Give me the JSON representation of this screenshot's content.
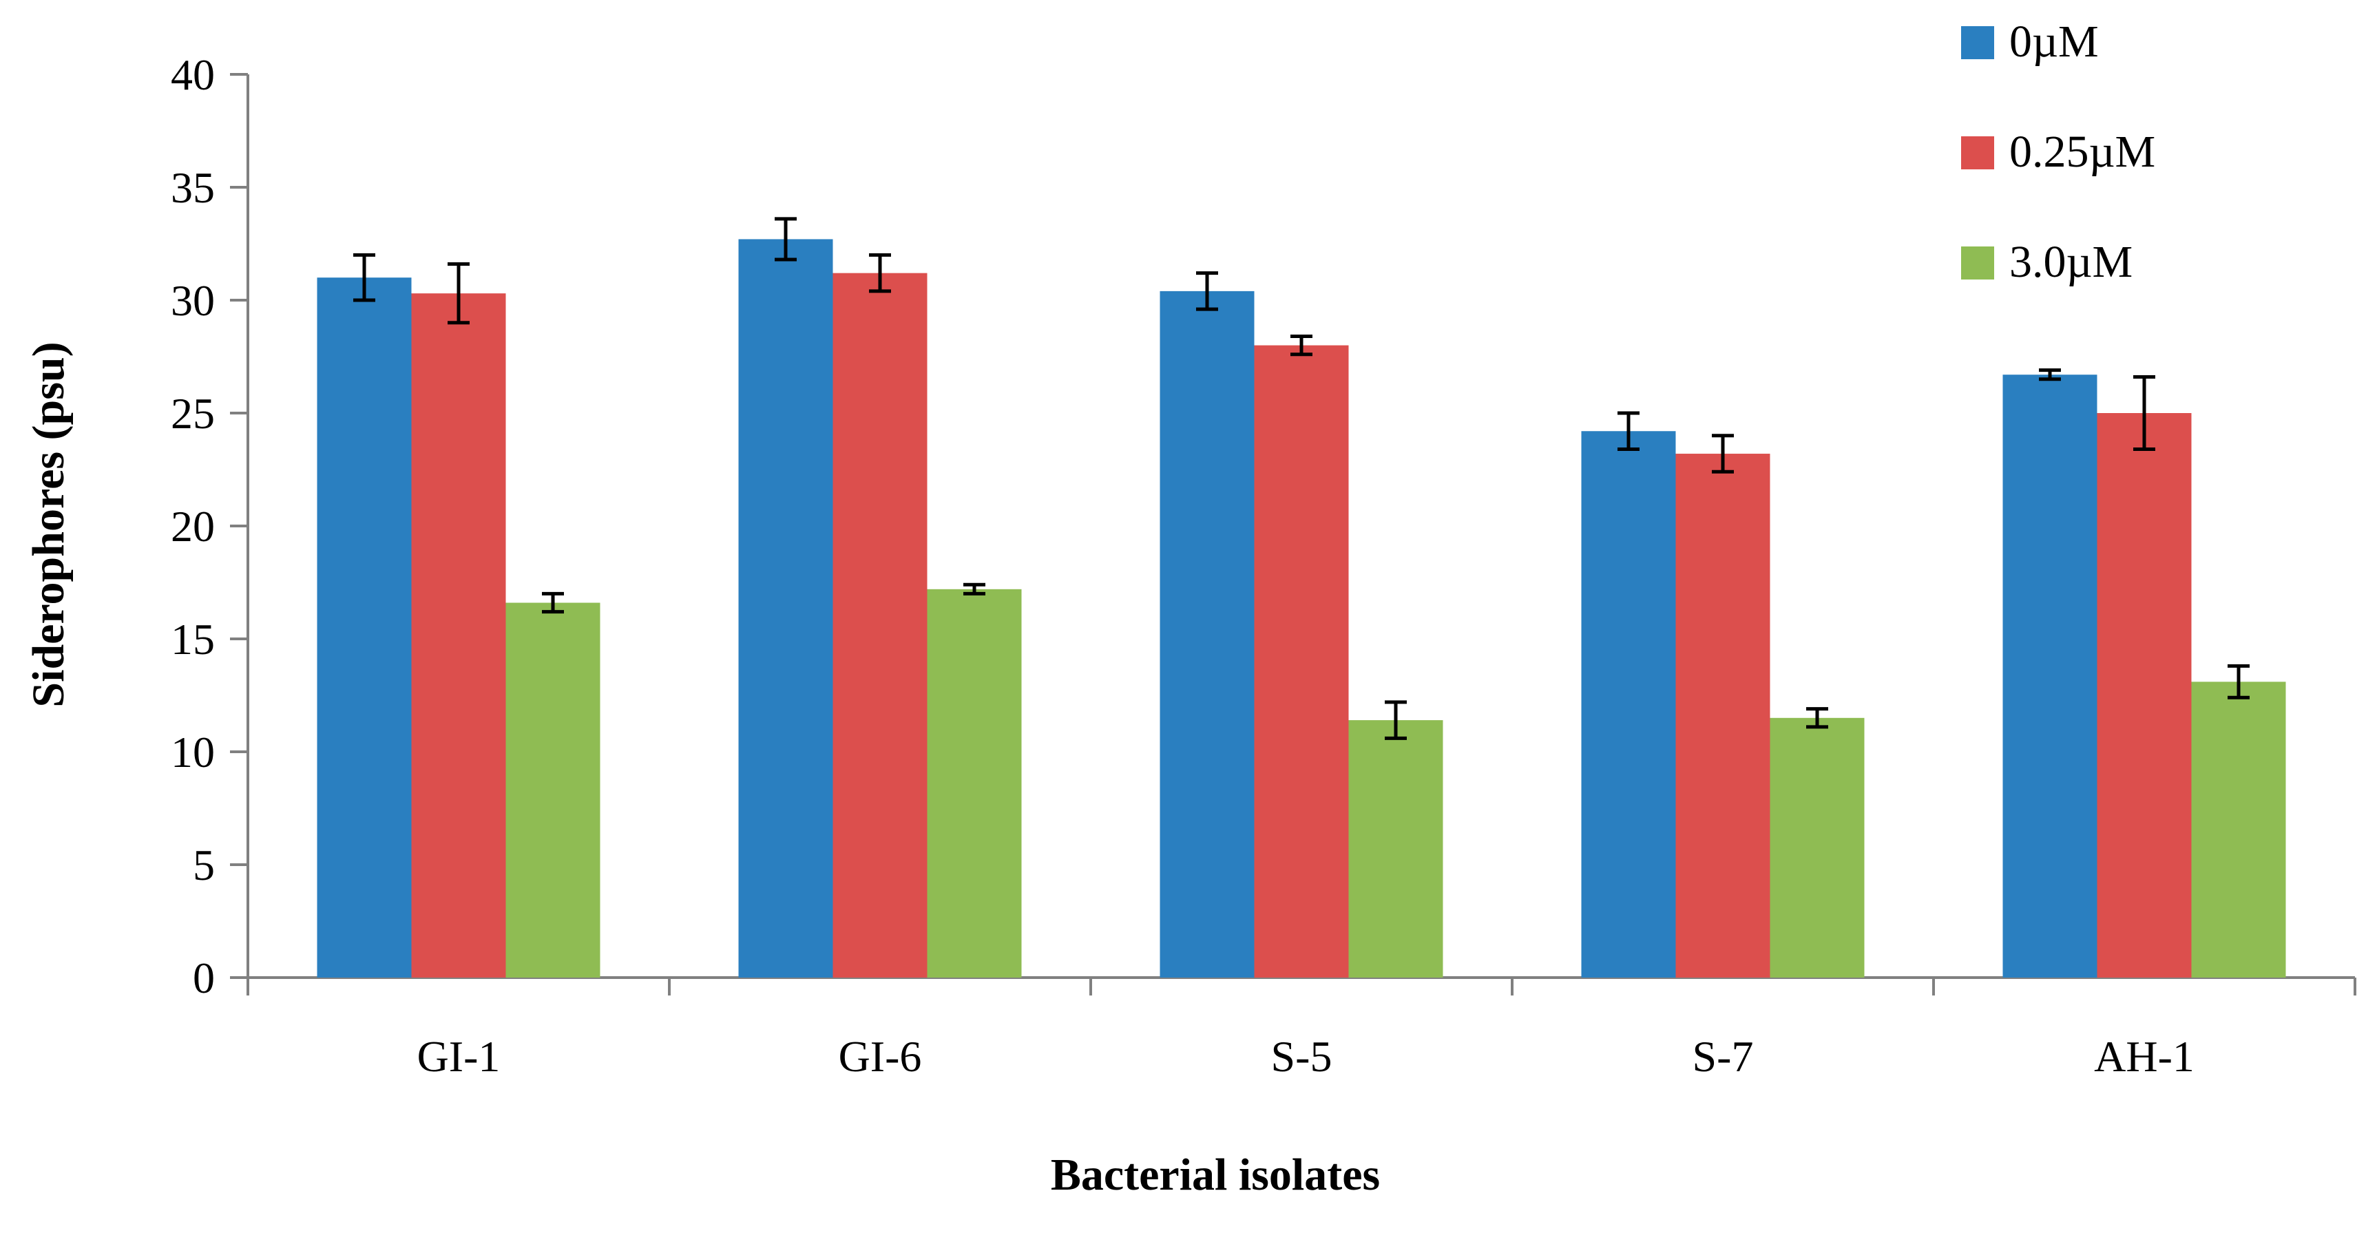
{
  "chart_data": {
    "type": "bar",
    "title": "",
    "xlabel": "Bacterial isolates",
    "ylabel": "Siderophores (psu)",
    "ylim": [
      0,
      40
    ],
    "yticks": [
      "0",
      "5",
      "10",
      "15",
      "20",
      "25",
      "30",
      "35",
      "40"
    ],
    "categories": [
      "GI-1",
      "GI-6",
      "S-5",
      "S-7",
      "AH-1"
    ],
    "series": [
      {
        "name": "0µM",
        "color": "#2a7fc0",
        "values": [
          31.0,
          32.7,
          30.4,
          24.2,
          26.7
        ],
        "errors": [
          1.0,
          0.9,
          0.8,
          0.8,
          0.2
        ]
      },
      {
        "name": "0.25µM",
        "color": "#dc4f4d",
        "values": [
          30.3,
          31.2,
          28.0,
          23.2,
          25.0
        ],
        "errors": [
          1.3,
          0.8,
          0.4,
          0.8,
          1.6
        ]
      },
      {
        "name": "3.0µM",
        "color": "#8fbc53",
        "values": [
          16.6,
          17.2,
          11.4,
          11.5,
          13.1
        ],
        "errors": [
          0.4,
          0.2,
          0.8,
          0.4,
          0.7
        ]
      }
    ],
    "grid": false,
    "legend": "top-right"
  }
}
